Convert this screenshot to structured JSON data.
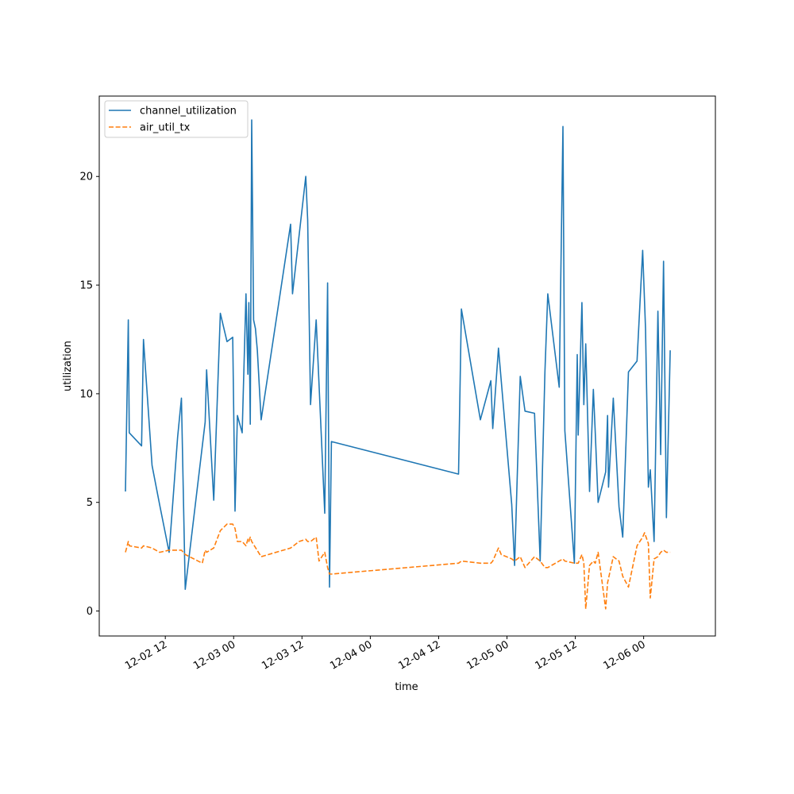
{
  "chart_data": {
    "type": "line",
    "title": "",
    "xlabel": "time",
    "ylabel": "utilization",
    "x_ticks": [
      {
        "label": "12-02 12",
        "value": "2024-12-02T12:00"
      },
      {
        "label": "12-03 00",
        "value": "2024-12-03T00:00"
      },
      {
        "label": "12-03 12",
        "value": "2024-12-03T12:00"
      },
      {
        "label": "12-04 00",
        "value": "2024-12-04T00:00"
      },
      {
        "label": "12-04 12",
        "value": "2024-12-04T12:00"
      },
      {
        "label": "12-05 00",
        "value": "2024-12-05T00:00"
      },
      {
        "label": "12-05 12",
        "value": "2024-12-05T12:00"
      },
      {
        "label": "12-06 00",
        "value": "2024-12-06T00:00"
      }
    ],
    "y_ticks": [
      0,
      5,
      10,
      15,
      20
    ],
    "xlim": [
      "2024-12-02T00:24",
      "2024-12-06T12:36"
    ],
    "ylim": [
      -1.15,
      23.7
    ],
    "grid": false,
    "legend_position": "top-left",
    "series": [
      {
        "name": "channel_utilization",
        "color": "#1f77b4",
        "style": "solid",
        "points": [
          [
            "2024-12-02T05:00",
            5.5
          ],
          [
            "2024-12-02T05:30",
            13.4
          ],
          [
            "2024-12-02T05:40",
            8.2
          ],
          [
            "2024-12-02T07:50",
            7.6
          ],
          [
            "2024-12-02T08:10",
            12.5
          ],
          [
            "2024-12-02T09:40",
            6.7
          ],
          [
            "2024-12-02T11:00",
            4.9
          ],
          [
            "2024-12-02T12:40",
            2.7
          ],
          [
            "2024-12-02T14:10",
            8.0
          ],
          [
            "2024-12-02T14:50",
            9.8
          ],
          [
            "2024-12-02T15:30",
            1.0
          ],
          [
            "2024-12-02T19:00",
            8.7
          ],
          [
            "2024-12-02T19:15",
            11.1
          ],
          [
            "2024-12-02T20:30",
            5.1
          ],
          [
            "2024-12-02T21:40",
            13.7
          ],
          [
            "2024-12-02T22:50",
            12.4
          ],
          [
            "2024-12-02T23:50",
            12.6
          ],
          [
            "2024-12-03T00:15",
            4.6
          ],
          [
            "2024-12-03T00:40",
            9.0
          ],
          [
            "2024-12-03T01:30",
            8.2
          ],
          [
            "2024-12-03T02:10",
            14.6
          ],
          [
            "2024-12-03T02:30",
            10.9
          ],
          [
            "2024-12-03T02:40",
            14.2
          ],
          [
            "2024-12-03T02:55",
            8.6
          ],
          [
            "2024-12-03T03:10",
            22.6
          ],
          [
            "2024-12-03T03:30",
            13.4
          ],
          [
            "2024-12-03T03:50",
            13.0
          ],
          [
            "2024-12-03T04:10",
            12.0
          ],
          [
            "2024-12-03T04:50",
            8.8
          ],
          [
            "2024-12-03T10:00",
            17.8
          ],
          [
            "2024-12-03T10:20",
            14.6
          ],
          [
            "2024-12-03T12:40",
            20.0
          ],
          [
            "2024-12-03T13:00",
            18.0
          ],
          [
            "2024-12-03T13:30",
            9.5
          ],
          [
            "2024-12-03T14:30",
            13.4
          ],
          [
            "2024-12-03T16:00",
            4.5
          ],
          [
            "2024-12-03T16:30",
            15.1
          ],
          [
            "2024-12-03T16:50",
            1.1
          ],
          [
            "2024-12-03T17:10",
            7.8
          ],
          [
            "2024-12-04T15:30",
            6.3
          ],
          [
            "2024-12-04T16:00",
            13.9
          ],
          [
            "2024-12-04T19:20",
            8.8
          ],
          [
            "2024-12-04T21:10",
            10.6
          ],
          [
            "2024-12-04T21:30",
            8.4
          ],
          [
            "2024-12-04T22:30",
            12.1
          ],
          [
            "2024-12-05T00:50",
            4.9
          ],
          [
            "2024-12-05T01:20",
            2.1
          ],
          [
            "2024-12-05T02:20",
            10.8
          ],
          [
            "2024-12-05T03:10",
            9.2
          ],
          [
            "2024-12-05T04:50",
            9.1
          ],
          [
            "2024-12-05T05:50",
            2.3
          ],
          [
            "2024-12-05T06:40",
            11.0
          ],
          [
            "2024-12-05T07:10",
            14.6
          ],
          [
            "2024-12-05T09:10",
            10.3
          ],
          [
            "2024-12-05T09:50",
            22.3
          ],
          [
            "2024-12-05T10:10",
            8.3
          ],
          [
            "2024-12-05T11:50",
            2.2
          ],
          [
            "2024-12-05T12:20",
            11.8
          ],
          [
            "2024-12-05T12:30",
            8.1
          ],
          [
            "2024-12-05T13:10",
            14.2
          ],
          [
            "2024-12-05T13:30",
            9.5
          ],
          [
            "2024-12-05T13:50",
            12.3
          ],
          [
            "2024-12-05T14:30",
            5.5
          ],
          [
            "2024-12-05T15:10",
            10.2
          ],
          [
            "2024-12-05T15:30",
            8.2
          ],
          [
            "2024-12-05T16:00",
            5.0
          ],
          [
            "2024-12-05T17:20",
            6.4
          ],
          [
            "2024-12-05T17:40",
            9.0
          ],
          [
            "2024-12-05T17:50",
            5.7
          ],
          [
            "2024-12-05T18:40",
            9.8
          ],
          [
            "2024-12-05T19:40",
            4.8
          ],
          [
            "2024-12-05T20:20",
            3.4
          ],
          [
            "2024-12-05T21:20",
            11.0
          ],
          [
            "2024-12-05T22:50",
            11.5
          ],
          [
            "2024-12-05T23:50",
            16.6
          ],
          [
            "2024-12-06T00:20",
            13.0
          ],
          [
            "2024-12-06T00:50",
            5.7
          ],
          [
            "2024-12-06T01:10",
            6.5
          ],
          [
            "2024-12-06T01:50",
            3.2
          ],
          [
            "2024-12-06T02:30",
            13.8
          ],
          [
            "2024-12-06T03:00",
            7.2
          ],
          [
            "2024-12-06T03:30",
            16.1
          ],
          [
            "2024-12-06T04:00",
            4.3
          ],
          [
            "2024-12-06T04:40",
            12.0
          ]
        ]
      },
      {
        "name": "air_util_tx",
        "color": "#ff7f0e",
        "style": "dashed",
        "points": [
          [
            "2024-12-02T05:00",
            2.7
          ],
          [
            "2024-12-02T05:30",
            3.2
          ],
          [
            "2024-12-02T05:40",
            3.0
          ],
          [
            "2024-12-02T07:50",
            2.9
          ],
          [
            "2024-12-02T08:10",
            3.0
          ],
          [
            "2024-12-02T09:40",
            2.9
          ],
          [
            "2024-12-02T11:00",
            2.7
          ],
          [
            "2024-12-02T12:40",
            2.8
          ],
          [
            "2024-12-02T14:10",
            2.8
          ],
          [
            "2024-12-02T14:50",
            2.8
          ],
          [
            "2024-12-02T15:30",
            2.6
          ],
          [
            "2024-12-02T18:30",
            2.2
          ],
          [
            "2024-12-02T19:00",
            2.8
          ],
          [
            "2024-12-02T19:15",
            2.7
          ],
          [
            "2024-12-02T20:30",
            2.9
          ],
          [
            "2024-12-02T21:40",
            3.7
          ],
          [
            "2024-12-02T22:50",
            4.0
          ],
          [
            "2024-12-02T23:50",
            4.0
          ],
          [
            "2024-12-03T00:15",
            3.8
          ],
          [
            "2024-12-03T00:40",
            3.2
          ],
          [
            "2024-12-03T01:30",
            3.2
          ],
          [
            "2024-12-03T02:10",
            3.0
          ],
          [
            "2024-12-03T02:30",
            3.3
          ],
          [
            "2024-12-03T02:40",
            3.2
          ],
          [
            "2024-12-03T02:55",
            3.4
          ],
          [
            "2024-12-03T03:10",
            3.2
          ],
          [
            "2024-12-03T04:50",
            2.5
          ],
          [
            "2024-12-03T10:00",
            2.9
          ],
          [
            "2024-12-03T11:30",
            3.2
          ],
          [
            "2024-12-03T12:40",
            3.3
          ],
          [
            "2024-12-03T13:00",
            3.2
          ],
          [
            "2024-12-03T13:30",
            3.2
          ],
          [
            "2024-12-03T14:30",
            3.4
          ],
          [
            "2024-12-03T15:00",
            2.3
          ],
          [
            "2024-12-03T15:30",
            2.5
          ],
          [
            "2024-12-03T16:00",
            2.7
          ],
          [
            "2024-12-03T16:30",
            2.0
          ],
          [
            "2024-12-03T16:50",
            1.7
          ],
          [
            "2024-12-03T17:10",
            1.7
          ],
          [
            "2024-12-04T15:30",
            2.2
          ],
          [
            "2024-12-04T16:00",
            2.3
          ],
          [
            "2024-12-04T19:20",
            2.2
          ],
          [
            "2024-12-04T21:10",
            2.2
          ],
          [
            "2024-12-04T21:30",
            2.3
          ],
          [
            "2024-12-04T22:30",
            2.9
          ],
          [
            "2024-12-04T23:00",
            2.6
          ],
          [
            "2024-12-05T00:50",
            2.4
          ],
          [
            "2024-12-05T01:20",
            2.3
          ],
          [
            "2024-12-05T02:20",
            2.5
          ],
          [
            "2024-12-05T03:10",
            2.0
          ],
          [
            "2024-12-05T04:50",
            2.5
          ],
          [
            "2024-12-05T05:50",
            2.3
          ],
          [
            "2024-12-05T06:40",
            2.0
          ],
          [
            "2024-12-05T07:10",
            2.0
          ],
          [
            "2024-12-05T09:10",
            2.3
          ],
          [
            "2024-12-05T09:50",
            2.4
          ],
          [
            "2024-12-05T10:10",
            2.3
          ],
          [
            "2024-12-05T11:50",
            2.2
          ],
          [
            "2024-12-05T12:30",
            2.2
          ],
          [
            "2024-12-05T13:10",
            2.6
          ],
          [
            "2024-12-05T13:30",
            2.2
          ],
          [
            "2024-12-05T13:50",
            0.1
          ],
          [
            "2024-12-05T14:30",
            2.1
          ],
          [
            "2024-12-05T15:10",
            2.3
          ],
          [
            "2024-12-05T15:30",
            2.2
          ],
          [
            "2024-12-05T16:00",
            2.7
          ],
          [
            "2024-12-05T17:20",
            0.1
          ],
          [
            "2024-12-05T17:40",
            1.3
          ],
          [
            "2024-12-05T18:40",
            2.5
          ],
          [
            "2024-12-05T19:40",
            2.3
          ],
          [
            "2024-12-05T20:20",
            1.6
          ],
          [
            "2024-12-05T21:20",
            1.1
          ],
          [
            "2024-12-05T22:50",
            3.0
          ],
          [
            "2024-12-05T23:50",
            3.4
          ],
          [
            "2024-12-06T00:10",
            3.6
          ],
          [
            "2024-12-06T00:50",
            3.1
          ],
          [
            "2024-12-06T01:10",
            0.6
          ],
          [
            "2024-12-06T01:50",
            2.4
          ],
          [
            "2024-12-06T02:30",
            2.5
          ],
          [
            "2024-12-06T03:00",
            2.7
          ],
          [
            "2024-12-06T03:30",
            2.8
          ],
          [
            "2024-12-06T04:00",
            2.7
          ],
          [
            "2024-12-06T04:40",
            2.7
          ]
        ]
      }
    ]
  }
}
